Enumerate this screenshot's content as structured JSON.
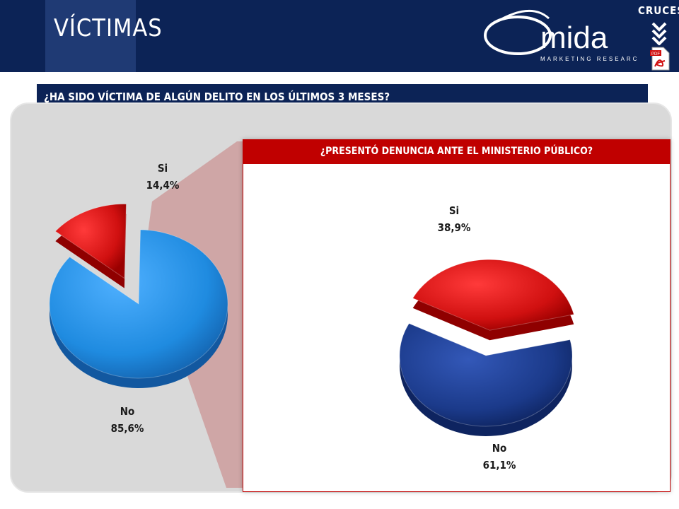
{
  "header": {
    "title": "VÍCTIMAS",
    "logo_text": "mida",
    "logo_subtitle": "MARKETING RESEARCH",
    "cruces_label": "CRUCES"
  },
  "question": "¿HA SIDO VÍCTIMA  DE ALGÚN DELITO EN LOS ÚLTIMOS 3 MESES?",
  "inset_question": "¿PRESENTÓ DENUNCIA ANTE EL MINISTERIO  PÚBLICO?",
  "colors": {
    "header": "#0c2356",
    "accent_red": "#c00000",
    "pie1_no": "#1f8be0",
    "pie1_si": "#d01010",
    "pie2_no": "#1b3a8a",
    "pie2_si": "#d01010"
  },
  "chart_data": [
    {
      "type": "pie",
      "title": "¿HA SIDO VÍCTIMA  DE ALGÚN DELITO EN LOS ÚLTIMOS 3 MESES?",
      "categories": [
        "Si",
        "No"
      ],
      "values": [
        14.4,
        85.6
      ],
      "labels": [
        "14,4%",
        "85,6%"
      ]
    },
    {
      "type": "pie",
      "title": "¿PRESENTÓ DENUNCIA ANTE EL MINISTERIO  PÚBLICO?",
      "categories": [
        "Si",
        "No"
      ],
      "values": [
        38.9,
        61.1
      ],
      "labels": [
        "38,9%",
        "61,1%"
      ]
    }
  ]
}
